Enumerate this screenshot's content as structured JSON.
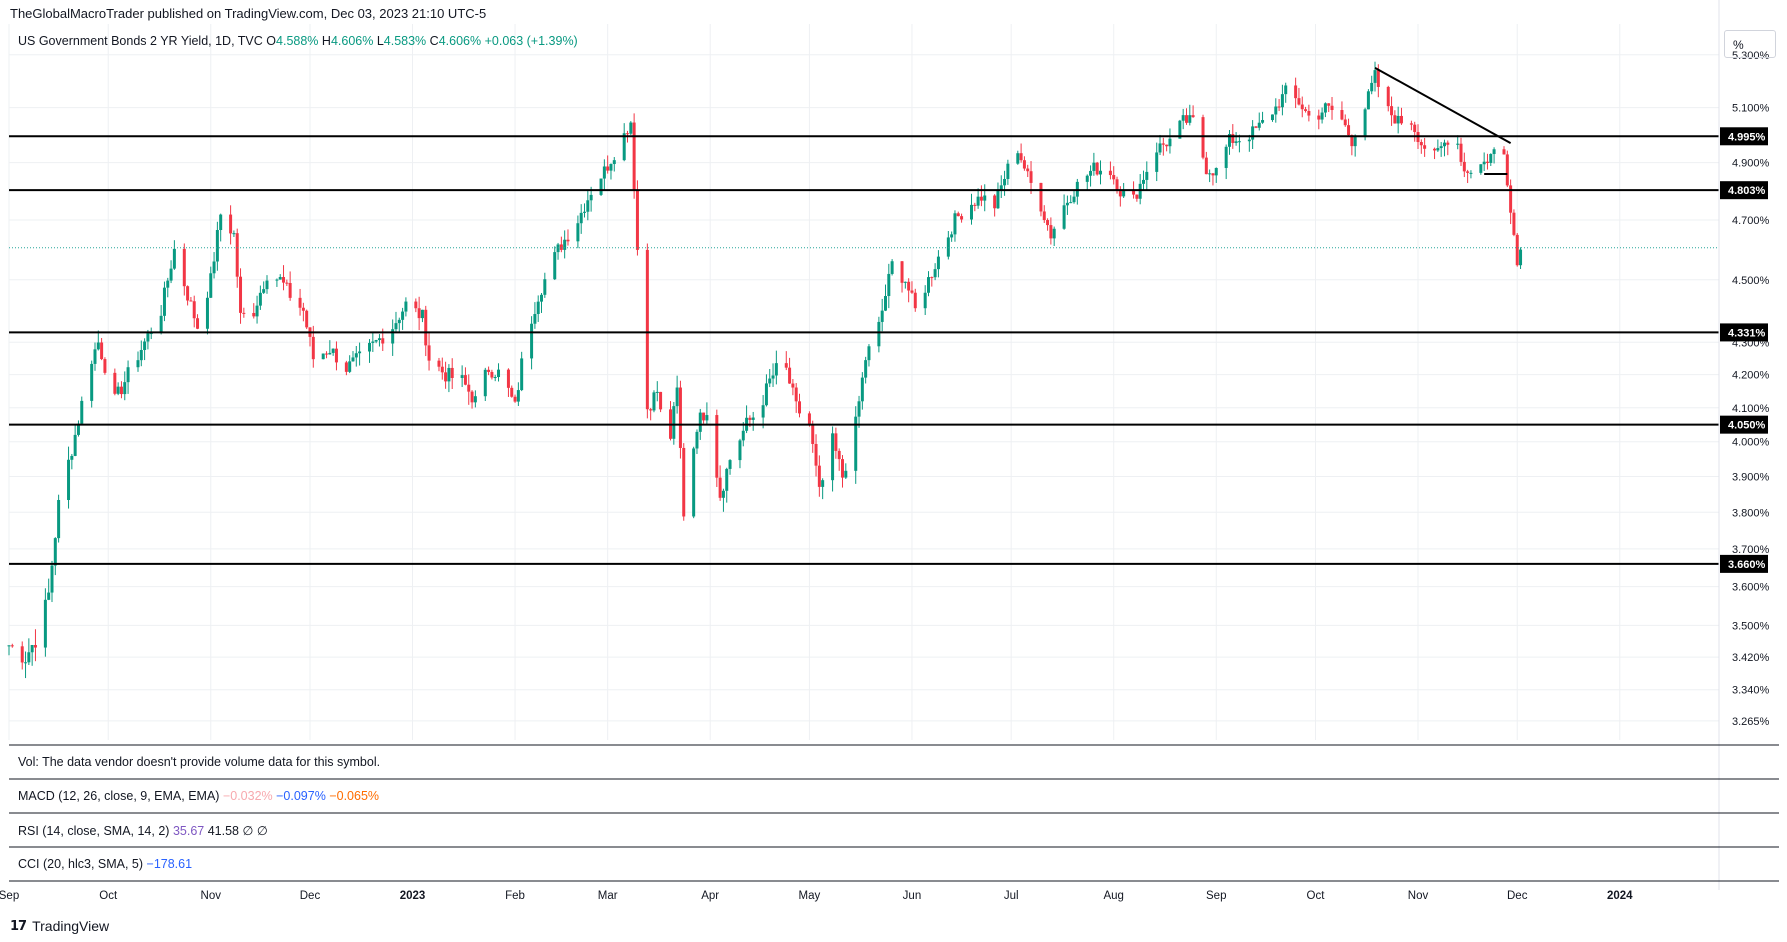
{
  "header": {
    "publisher": "TheGlobalMacroTrader published on TradingView.com, Dec 03, 2023 21:10 UTC-5"
  },
  "legend": {
    "symbol": "US Government Bonds 2 YR Yield, 1D, TVC",
    "o_label": "O",
    "o_value": "4.588%",
    "h_label": "H",
    "h_value": "4.606%",
    "l_label": "L",
    "l_value": "4.583%",
    "c_label": "C",
    "c_value": "4.606%",
    "change": "+0.063 (+1.39%)"
  },
  "scale_button": "%",
  "panes": {
    "vol": "Vol: The data vendor doesn't provide volume data for this symbol.",
    "macd_label": "MACD (12, 26, close, 9, EMA, EMA)",
    "macd_v1": "−0.032%",
    "macd_v2": "−0.097%",
    "macd_v3": "−0.065%",
    "rsi_label": "RSI (14, close, SMA, 14, 2)",
    "rsi_v1": "35.67",
    "rsi_v2": "41.58",
    "rsi_v3": "∅",
    "rsi_v4": "∅",
    "cci_label": "CCI (20, hlc3, SMA, 5)",
    "cci_v1": "−178.61"
  },
  "footer": {
    "brand": "TradingView",
    "mark": "17"
  },
  "colors": {
    "up": "#089981",
    "down": "#f23645",
    "grid": "#eef0f3",
    "line": "#000000",
    "label_bg": "#000000",
    "label_fg": "#ffffff",
    "last_price": "#26a69a"
  },
  "chart_data": {
    "type": "candlestick",
    "title": "US Government Bonds 2 YR Yield, 1D, TVC",
    "y_unit": "%",
    "y_scale": "log",
    "ylim": [
      3.22,
      5.42
    ],
    "x_range": [
      "2022-09-01",
      "2024-01-31"
    ],
    "y_ticks": [
      "3.265%",
      "3.340%",
      "3.420%",
      "3.500%",
      "3.600%",
      "3.700%",
      "3.800%",
      "3.900%",
      "4.000%",
      "4.100%",
      "4.200%",
      "4.300%",
      "4.500%",
      "4.700%",
      "4.900%",
      "5.100%",
      "5.300%"
    ],
    "x_ticks": [
      {
        "date": "2022-09-01",
        "label": "Sep"
      },
      {
        "date": "2022-10-01",
        "label": "Oct"
      },
      {
        "date": "2022-11-01",
        "label": "Nov"
      },
      {
        "date": "2022-12-01",
        "label": "Dec"
      },
      {
        "date": "2023-01-01",
        "label": "2023"
      },
      {
        "date": "2023-02-01",
        "label": "Feb"
      },
      {
        "date": "2023-03-01",
        "label": "Mar"
      },
      {
        "date": "2023-04-01",
        "label": "Apr"
      },
      {
        "date": "2023-05-01",
        "label": "May"
      },
      {
        "date": "2023-06-01",
        "label": "Jun"
      },
      {
        "date": "2023-07-01",
        "label": "Jul"
      },
      {
        "date": "2023-08-01",
        "label": "Aug"
      },
      {
        "date": "2023-09-01",
        "label": "Sep"
      },
      {
        "date": "2023-10-01",
        "label": "Oct"
      },
      {
        "date": "2023-11-01",
        "label": "Nov"
      },
      {
        "date": "2023-12-01",
        "label": "Dec"
      },
      {
        "date": "2024-01-01",
        "label": "2024"
      }
    ],
    "horizontal_levels": [
      {
        "value": 4.995,
        "label": "4.995%"
      },
      {
        "value": 4.803,
        "label": "4.803%"
      },
      {
        "value": 4.331,
        "label": "4.331%"
      },
      {
        "value": 4.05,
        "label": "4.050%"
      },
      {
        "value": 3.66,
        "label": "3.660%"
      }
    ],
    "trendlines": [
      {
        "from": [
          "2023-10-19",
          5.25
        ],
        "to": [
          "2023-11-29",
          4.97
        ]
      },
      {
        "from": [
          "2023-11-21",
          4.86
        ],
        "to": [
          "2023-11-28",
          4.86
        ]
      }
    ],
    "last_price": 4.606,
    "anchors": [
      [
        "2022-09-01",
        3.45
      ],
      [
        "2022-09-06",
        3.42
      ],
      [
        "2022-09-10",
        3.48
      ],
      [
        "2022-09-13",
        3.58
      ],
      [
        "2022-09-16",
        3.82
      ],
      [
        "2022-09-21",
        4.02
      ],
      [
        "2022-09-26",
        4.25
      ],
      [
        "2022-09-28",
        4.3
      ],
      [
        "2022-10-03",
        4.12
      ],
      [
        "2022-10-07",
        4.2
      ],
      [
        "2022-10-12",
        4.3
      ],
      [
        "2022-10-17",
        4.4
      ],
      [
        "2022-10-21",
        4.6
      ],
      [
        "2022-10-25",
        4.45
      ],
      [
        "2022-10-28",
        4.35
      ],
      [
        "2022-11-01",
        4.5
      ],
      [
        "2022-11-04",
        4.72
      ],
      [
        "2022-11-08",
        4.65
      ],
      [
        "2022-11-10",
        4.38
      ],
      [
        "2022-11-14",
        4.4
      ],
      [
        "2022-11-18",
        4.52
      ],
      [
        "2022-11-22",
        4.5
      ],
      [
        "2022-11-25",
        4.45
      ],
      [
        "2022-11-29",
        4.4
      ],
      [
        "2022-12-02",
        4.25
      ],
      [
        "2022-12-07",
        4.28
      ],
      [
        "2022-12-12",
        4.22
      ],
      [
        "2022-12-16",
        4.25
      ],
      [
        "2022-12-21",
        4.3
      ],
      [
        "2022-12-26",
        4.35
      ],
      [
        "2022-12-30",
        4.42
      ],
      [
        "2023-01-04",
        4.38
      ],
      [
        "2023-01-06",
        4.25
      ],
      [
        "2023-01-11",
        4.2
      ],
      [
        "2023-01-16",
        4.18
      ],
      [
        "2023-01-20",
        4.12
      ],
      [
        "2023-01-24",
        4.22
      ],
      [
        "2023-01-28",
        4.2
      ],
      [
        "2023-02-01",
        4.1
      ],
      [
        "2023-02-04",
        4.3
      ],
      [
        "2023-02-08",
        4.45
      ],
      [
        "2023-02-14",
        4.6
      ],
      [
        "2023-02-20",
        4.7
      ],
      [
        "2023-02-24",
        4.8
      ],
      [
        "2023-03-01",
        4.89
      ],
      [
        "2023-03-06",
        5.0
      ],
      [
        "2023-03-08",
        5.05
      ],
      [
        "2023-03-10",
        4.6
      ],
      [
        "2023-03-13",
        4.1
      ],
      [
        "2023-03-16",
        4.15
      ],
      [
        "2023-03-19",
        3.95
      ],
      [
        "2023-03-22",
        4.15
      ],
      [
        "2023-03-24",
        3.8
      ],
      [
        "2023-03-28",
        4.05
      ],
      [
        "2023-03-31",
        4.1
      ],
      [
        "2023-04-04",
        3.85
      ],
      [
        "2023-04-07",
        3.95
      ],
      [
        "2023-04-12",
        4.05
      ],
      [
        "2023-04-16",
        4.1
      ],
      [
        "2023-04-19",
        4.18
      ],
      [
        "2023-04-23",
        4.25
      ],
      [
        "2023-04-27",
        4.1
      ],
      [
        "2023-05-01",
        4.05
      ],
      [
        "2023-05-04",
        3.85
      ],
      [
        "2023-05-08",
        4.0
      ],
      [
        "2023-05-11",
        3.9
      ],
      [
        "2023-05-15",
        4.05
      ],
      [
        "2023-05-18",
        4.25
      ],
      [
        "2023-05-22",
        4.35
      ],
      [
        "2023-05-26",
        4.55
      ],
      [
        "2023-05-30",
        4.5
      ],
      [
        "2023-06-02",
        4.4
      ],
      [
        "2023-06-06",
        4.5
      ],
      [
        "2023-06-10",
        4.6
      ],
      [
        "2023-06-14",
        4.7
      ],
      [
        "2023-06-18",
        4.75
      ],
      [
        "2023-06-22",
        4.78
      ],
      [
        "2023-06-26",
        4.75
      ],
      [
        "2023-06-30",
        4.88
      ],
      [
        "2023-07-03",
        4.95
      ],
      [
        "2023-07-06",
        4.85
      ],
      [
        "2023-07-10",
        4.75
      ],
      [
        "2023-07-13",
        4.65
      ],
      [
        "2023-07-17",
        4.75
      ],
      [
        "2023-07-21",
        4.82
      ],
      [
        "2023-07-26",
        4.88
      ],
      [
        "2023-07-31",
        4.87
      ],
      [
        "2023-08-03",
        4.8
      ],
      [
        "2023-08-07",
        4.77
      ],
      [
        "2023-08-10",
        4.85
      ],
      [
        "2023-08-14",
        4.95
      ],
      [
        "2023-08-18",
        4.98
      ],
      [
        "2023-08-22",
        5.05
      ],
      [
        "2023-08-25",
        5.05
      ],
      [
        "2023-08-29",
        4.88
      ],
      [
        "2023-09-01",
        4.87
      ],
      [
        "2023-09-05",
        4.98
      ],
      [
        "2023-09-10",
        4.99
      ],
      [
        "2023-09-14",
        5.03
      ],
      [
        "2023-09-19",
        5.1
      ],
      [
        "2023-09-22",
        5.16
      ],
      [
        "2023-09-26",
        5.12
      ],
      [
        "2023-09-30",
        5.05
      ],
      [
        "2023-10-04",
        5.1
      ],
      [
        "2023-10-08",
        5.08
      ],
      [
        "2023-10-12",
        4.98
      ],
      [
        "2023-10-16",
        5.1
      ],
      [
        "2023-10-19",
        5.22
      ],
      [
        "2023-10-22",
        5.1
      ],
      [
        "2023-10-26",
        5.05
      ],
      [
        "2023-10-30",
        5.05
      ],
      [
        "2023-11-02",
        4.97
      ],
      [
        "2023-11-06",
        4.92
      ],
      [
        "2023-11-09",
        4.97
      ],
      [
        "2023-11-12",
        5.02
      ],
      [
        "2023-11-15",
        4.87
      ],
      [
        "2023-11-18",
        4.88
      ],
      [
        "2023-11-21",
        4.9
      ],
      [
        "2023-11-24",
        4.94
      ],
      [
        "2023-11-27",
        4.93
      ],
      [
        "2023-11-29",
        4.75
      ],
      [
        "2023-12-01",
        4.55
      ],
      [
        "2023-12-02",
        4.6
      ]
    ]
  }
}
